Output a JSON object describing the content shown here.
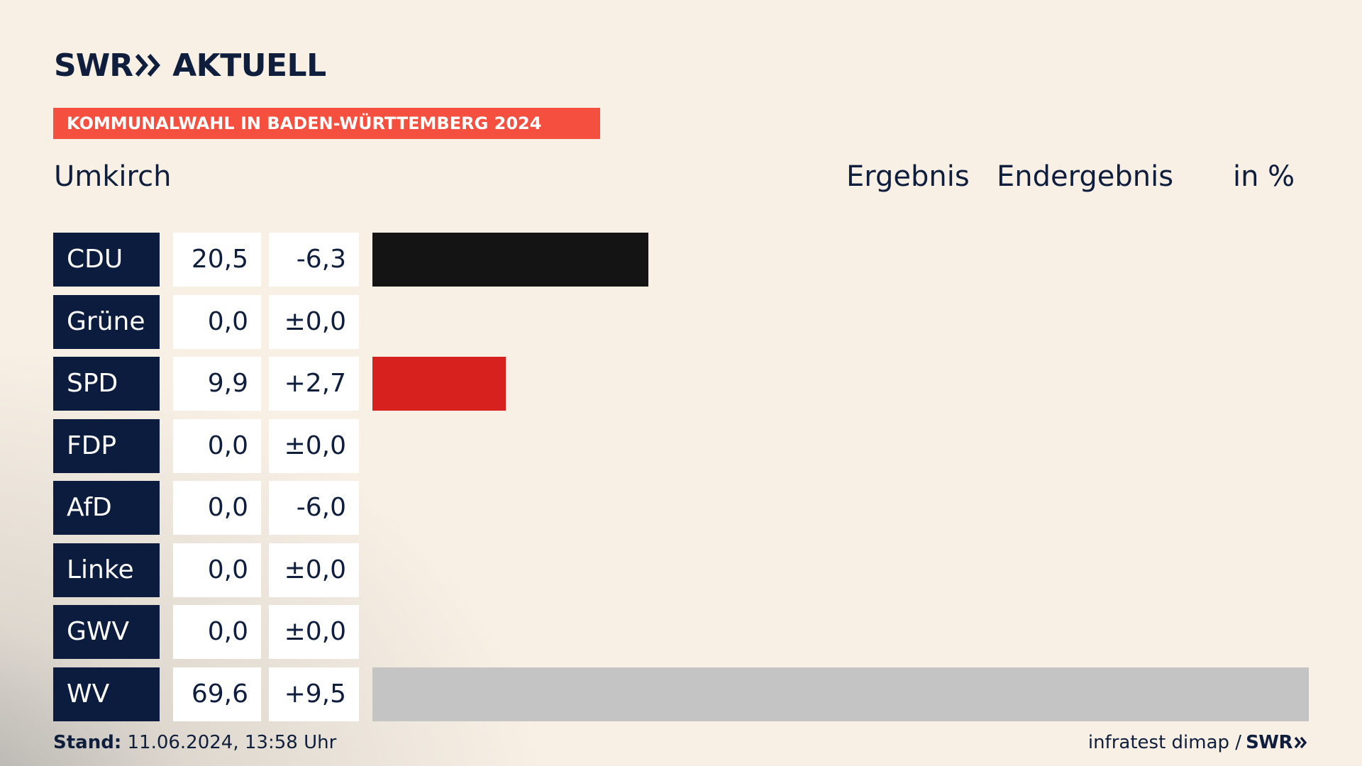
{
  "brand": {
    "swr": "SWR",
    "aktuell": "AKTUELL"
  },
  "banner": "KOMMUNALWAHL IN BADEN-WÜRTTEMBERG 2024",
  "header": {
    "place": "Umkirch",
    "col_result": "Ergebnis",
    "col_status": "Endergebnis",
    "col_unit": "in %"
  },
  "chart_data": {
    "type": "bar",
    "categories": [
      "CDU",
      "Grüne",
      "SPD",
      "FDP",
      "AfD",
      "Linke",
      "GWV",
      "WV"
    ],
    "values": [
      20.5,
      0.0,
      9.9,
      0.0,
      0.0,
      0.0,
      0.0,
      69.6
    ],
    "values_label": [
      "20,5",
      "0,0",
      "9,9",
      "0,0",
      "0,0",
      "0,0",
      "0,0",
      "69,6"
    ],
    "diff": [
      -6.3,
      0.0,
      2.7,
      0.0,
      -6.0,
      0.0,
      0.0,
      9.5
    ],
    "diff_label": [
      "-6,3",
      "±0,0",
      "+2,7",
      "±0,0",
      "-6,0",
      "±0,0",
      "±0,0",
      "+9,5"
    ],
    "colors": [
      "#141414",
      "#1f9d3c",
      "#d6211f",
      "#f3d400",
      "#1b8dd0",
      "#b52a62",
      "#4a8fcf",
      "#c4c4c4"
    ],
    "xlim": [
      0,
      69.6
    ]
  },
  "footer": {
    "stand_label": "Stand:",
    "stand_value": "11.06.2024, 13:58 Uhr",
    "source": "infratest dimap /",
    "source_brand": "SWR"
  }
}
